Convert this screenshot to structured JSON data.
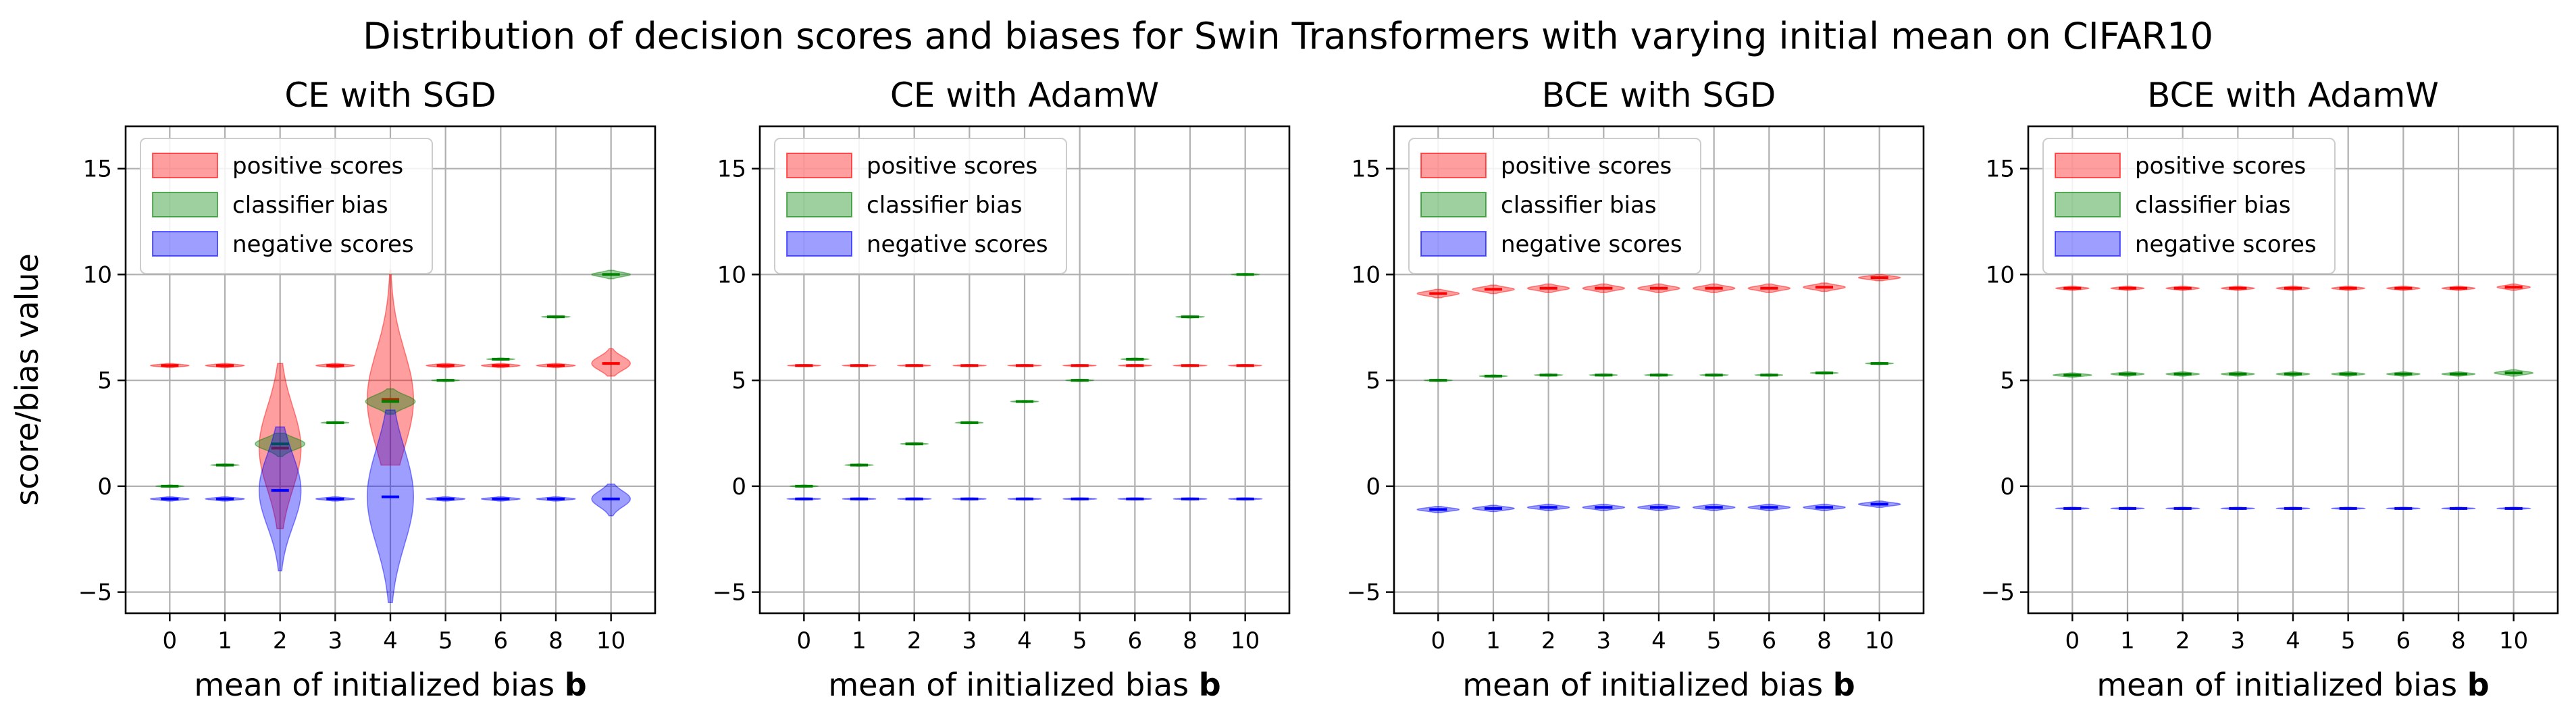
{
  "figure": {
    "title": "Distribution of decision scores and biases for Swin Transformers with varying initial mean on CIFAR10",
    "ylabel": "score/bias value",
    "xlabel_text": "mean of initialized bias",
    "xlabel_bold": "b"
  },
  "chart_data": [
    {
      "type": "violin",
      "title": "CE with SGD",
      "categories": [
        "0",
        "1",
        "2",
        "3",
        "4",
        "5",
        "6",
        "8",
        "10"
      ],
      "ylim": [
        -6,
        17
      ],
      "yticks": [
        -5,
        0,
        5,
        10,
        15
      ],
      "grid": true,
      "legend_position": "top-left",
      "legend": [
        "positive scores",
        "classifier bias",
        "negative scores"
      ],
      "series": [
        {
          "name": "positive scores",
          "color": "#ff0000",
          "medians": [
            5.7,
            5.7,
            1.8,
            5.7,
            4.1,
            5.7,
            5.7,
            5.7,
            5.8
          ],
          "low": [
            5.6,
            5.6,
            -2.0,
            5.6,
            1.0,
            5.6,
            5.6,
            5.6,
            5.2
          ],
          "high": [
            5.8,
            5.8,
            5.8,
            5.8,
            10.2,
            5.8,
            5.8,
            5.8,
            6.5
          ],
          "max_width": [
            0.35,
            0.35,
            0.38,
            0.35,
            0.42,
            0.35,
            0.35,
            0.35,
            0.35
          ]
        },
        {
          "name": "classifier bias",
          "color": "#008000",
          "medians": [
            0.0,
            1.0,
            2.0,
            3.0,
            4.0,
            5.0,
            6.0,
            8.0,
            10.0
          ],
          "low": [
            -0.05,
            0.95,
            1.4,
            2.95,
            3.4,
            4.95,
            5.95,
            7.95,
            9.8
          ],
          "high": [
            0.05,
            1.05,
            2.5,
            3.05,
            4.6,
            5.05,
            6.05,
            8.05,
            10.2
          ],
          "max_width": [
            0.25,
            0.25,
            0.45,
            0.25,
            0.45,
            0.25,
            0.25,
            0.25,
            0.35
          ]
        },
        {
          "name": "negative scores",
          "color": "#0000ff",
          "medians": [
            -0.6,
            -0.6,
            -0.2,
            -0.6,
            -0.5,
            -0.6,
            -0.6,
            -0.6,
            -0.6
          ],
          "low": [
            -0.7,
            -0.7,
            -4.0,
            -0.7,
            -5.5,
            -0.7,
            -0.7,
            -0.7,
            -1.4
          ],
          "high": [
            -0.5,
            -0.5,
            2.8,
            -0.5,
            3.6,
            -0.5,
            -0.5,
            -0.5,
            0.1
          ],
          "max_width": [
            0.35,
            0.35,
            0.38,
            0.35,
            0.42,
            0.35,
            0.35,
            0.35,
            0.35
          ]
        }
      ]
    },
    {
      "type": "violin",
      "title": "CE with AdamW",
      "categories": [
        "0",
        "1",
        "2",
        "3",
        "4",
        "5",
        "6",
        "8",
        "10"
      ],
      "ylim": [
        -6,
        17
      ],
      "yticks": [
        -5,
        0,
        5,
        10,
        15
      ],
      "grid": true,
      "legend_position": "top-left",
      "legend": [
        "positive scores",
        "classifier bias",
        "negative scores"
      ],
      "series": [
        {
          "name": "positive scores",
          "color": "#ff0000",
          "medians": [
            5.7,
            5.7,
            5.7,
            5.7,
            5.7,
            5.7,
            5.7,
            5.7,
            5.7
          ],
          "low": [
            5.65,
            5.65,
            5.65,
            5.65,
            5.65,
            5.65,
            5.65,
            5.65,
            5.65
          ],
          "high": [
            5.75,
            5.75,
            5.75,
            5.75,
            5.75,
            5.75,
            5.75,
            5.75,
            5.75
          ],
          "max_width": [
            0.3,
            0.3,
            0.3,
            0.3,
            0.3,
            0.3,
            0.3,
            0.3,
            0.3
          ]
        },
        {
          "name": "classifier bias",
          "color": "#008000",
          "medians": [
            0.0,
            1.0,
            2.0,
            3.0,
            4.0,
            5.0,
            6.0,
            8.0,
            10.0
          ],
          "low": [
            -0.05,
            0.95,
            1.95,
            2.95,
            3.95,
            4.95,
            5.95,
            7.95,
            9.95
          ],
          "high": [
            0.05,
            1.05,
            2.05,
            3.05,
            4.05,
            5.05,
            6.05,
            8.05,
            10.05
          ],
          "max_width": [
            0.25,
            0.25,
            0.25,
            0.25,
            0.25,
            0.25,
            0.25,
            0.25,
            0.25
          ]
        },
        {
          "name": "negative scores",
          "color": "#0000ff",
          "medians": [
            -0.6,
            -0.6,
            -0.6,
            -0.6,
            -0.6,
            -0.6,
            -0.6,
            -0.6,
            -0.6
          ],
          "low": [
            -0.65,
            -0.65,
            -0.65,
            -0.65,
            -0.65,
            -0.65,
            -0.65,
            -0.65,
            -0.65
          ],
          "high": [
            -0.55,
            -0.55,
            -0.55,
            -0.55,
            -0.55,
            -0.55,
            -0.55,
            -0.55,
            -0.55
          ],
          "max_width": [
            0.3,
            0.3,
            0.3,
            0.3,
            0.3,
            0.3,
            0.3,
            0.3,
            0.3
          ]
        }
      ]
    },
    {
      "type": "violin",
      "title": "BCE with SGD",
      "categories": [
        "0",
        "1",
        "2",
        "3",
        "4",
        "5",
        "6",
        "8",
        "10"
      ],
      "ylim": [
        -6,
        17
      ],
      "yticks": [
        -5,
        0,
        5,
        10,
        15
      ],
      "grid": true,
      "legend_position": "top-left",
      "legend": [
        "positive scores",
        "classifier bias",
        "negative scores"
      ],
      "series": [
        {
          "name": "positive scores",
          "color": "#ff0000",
          "medians": [
            9.1,
            9.3,
            9.35,
            9.35,
            9.35,
            9.35,
            9.35,
            9.4,
            9.85
          ],
          "low": [
            8.9,
            9.1,
            9.15,
            9.15,
            9.15,
            9.15,
            9.15,
            9.2,
            9.7
          ],
          "high": [
            9.3,
            9.5,
            9.55,
            9.55,
            9.55,
            9.55,
            9.55,
            9.6,
            10.0
          ],
          "max_width": [
            0.38,
            0.38,
            0.38,
            0.38,
            0.38,
            0.38,
            0.38,
            0.38,
            0.38
          ]
        },
        {
          "name": "classifier bias",
          "color": "#008000",
          "medians": [
            5.0,
            5.2,
            5.25,
            5.25,
            5.25,
            5.25,
            5.25,
            5.35,
            5.8
          ],
          "low": [
            4.95,
            5.15,
            5.2,
            5.2,
            5.2,
            5.2,
            5.2,
            5.3,
            5.75
          ],
          "high": [
            5.05,
            5.25,
            5.3,
            5.3,
            5.3,
            5.3,
            5.3,
            5.4,
            5.85
          ],
          "max_width": [
            0.25,
            0.25,
            0.25,
            0.25,
            0.25,
            0.25,
            0.25,
            0.25,
            0.25
          ]
        },
        {
          "name": "negative scores",
          "color": "#0000ff",
          "medians": [
            -1.1,
            -1.05,
            -1.0,
            -1.0,
            -1.0,
            -1.0,
            -1.0,
            -1.0,
            -0.85
          ],
          "low": [
            -1.25,
            -1.2,
            -1.15,
            -1.15,
            -1.15,
            -1.15,
            -1.15,
            -1.15,
            -1.0
          ],
          "high": [
            -0.95,
            -0.9,
            -0.85,
            -0.85,
            -0.85,
            -0.85,
            -0.85,
            -0.85,
            -0.7
          ],
          "max_width": [
            0.38,
            0.38,
            0.38,
            0.38,
            0.38,
            0.38,
            0.38,
            0.38,
            0.38
          ]
        }
      ]
    },
    {
      "type": "violin",
      "title": "BCE with AdamW",
      "categories": [
        "0",
        "1",
        "2",
        "3",
        "4",
        "5",
        "6",
        "8",
        "10"
      ],
      "ylim": [
        -6,
        17
      ],
      "yticks": [
        -5,
        0,
        5,
        10,
        15
      ],
      "grid": true,
      "legend_position": "top-left",
      "legend": [
        "positive scores",
        "classifier bias",
        "negative scores"
      ],
      "series": [
        {
          "name": "positive scores",
          "color": "#ff0000",
          "medians": [
            9.35,
            9.35,
            9.35,
            9.35,
            9.35,
            9.35,
            9.35,
            9.35,
            9.4
          ],
          "low": [
            9.25,
            9.25,
            9.25,
            9.25,
            9.25,
            9.25,
            9.25,
            9.25,
            9.25
          ],
          "high": [
            9.45,
            9.45,
            9.45,
            9.45,
            9.45,
            9.45,
            9.45,
            9.45,
            9.55
          ],
          "max_width": [
            0.3,
            0.3,
            0.3,
            0.3,
            0.3,
            0.3,
            0.3,
            0.3,
            0.3
          ]
        },
        {
          "name": "classifier bias",
          "color": "#008000",
          "medians": [
            5.25,
            5.3,
            5.3,
            5.3,
            5.3,
            5.3,
            5.3,
            5.3,
            5.35
          ],
          "low": [
            5.15,
            5.2,
            5.2,
            5.2,
            5.2,
            5.2,
            5.2,
            5.2,
            5.2
          ],
          "high": [
            5.35,
            5.4,
            5.4,
            5.4,
            5.4,
            5.4,
            5.4,
            5.4,
            5.5
          ],
          "max_width": [
            0.35,
            0.3,
            0.3,
            0.3,
            0.3,
            0.3,
            0.3,
            0.3,
            0.35
          ]
        },
        {
          "name": "negative scores",
          "color": "#0000ff",
          "medians": [
            -1.05,
            -1.05,
            -1.05,
            -1.05,
            -1.05,
            -1.05,
            -1.05,
            -1.05,
            -1.05
          ],
          "low": [
            -1.1,
            -1.1,
            -1.1,
            -1.1,
            -1.1,
            -1.1,
            -1.1,
            -1.1,
            -1.1
          ],
          "high": [
            -1.0,
            -1.0,
            -1.0,
            -1.0,
            -1.0,
            -1.0,
            -1.0,
            -1.0,
            -1.0
          ],
          "max_width": [
            0.3,
            0.3,
            0.3,
            0.3,
            0.3,
            0.3,
            0.3,
            0.3,
            0.3
          ]
        }
      ]
    }
  ]
}
